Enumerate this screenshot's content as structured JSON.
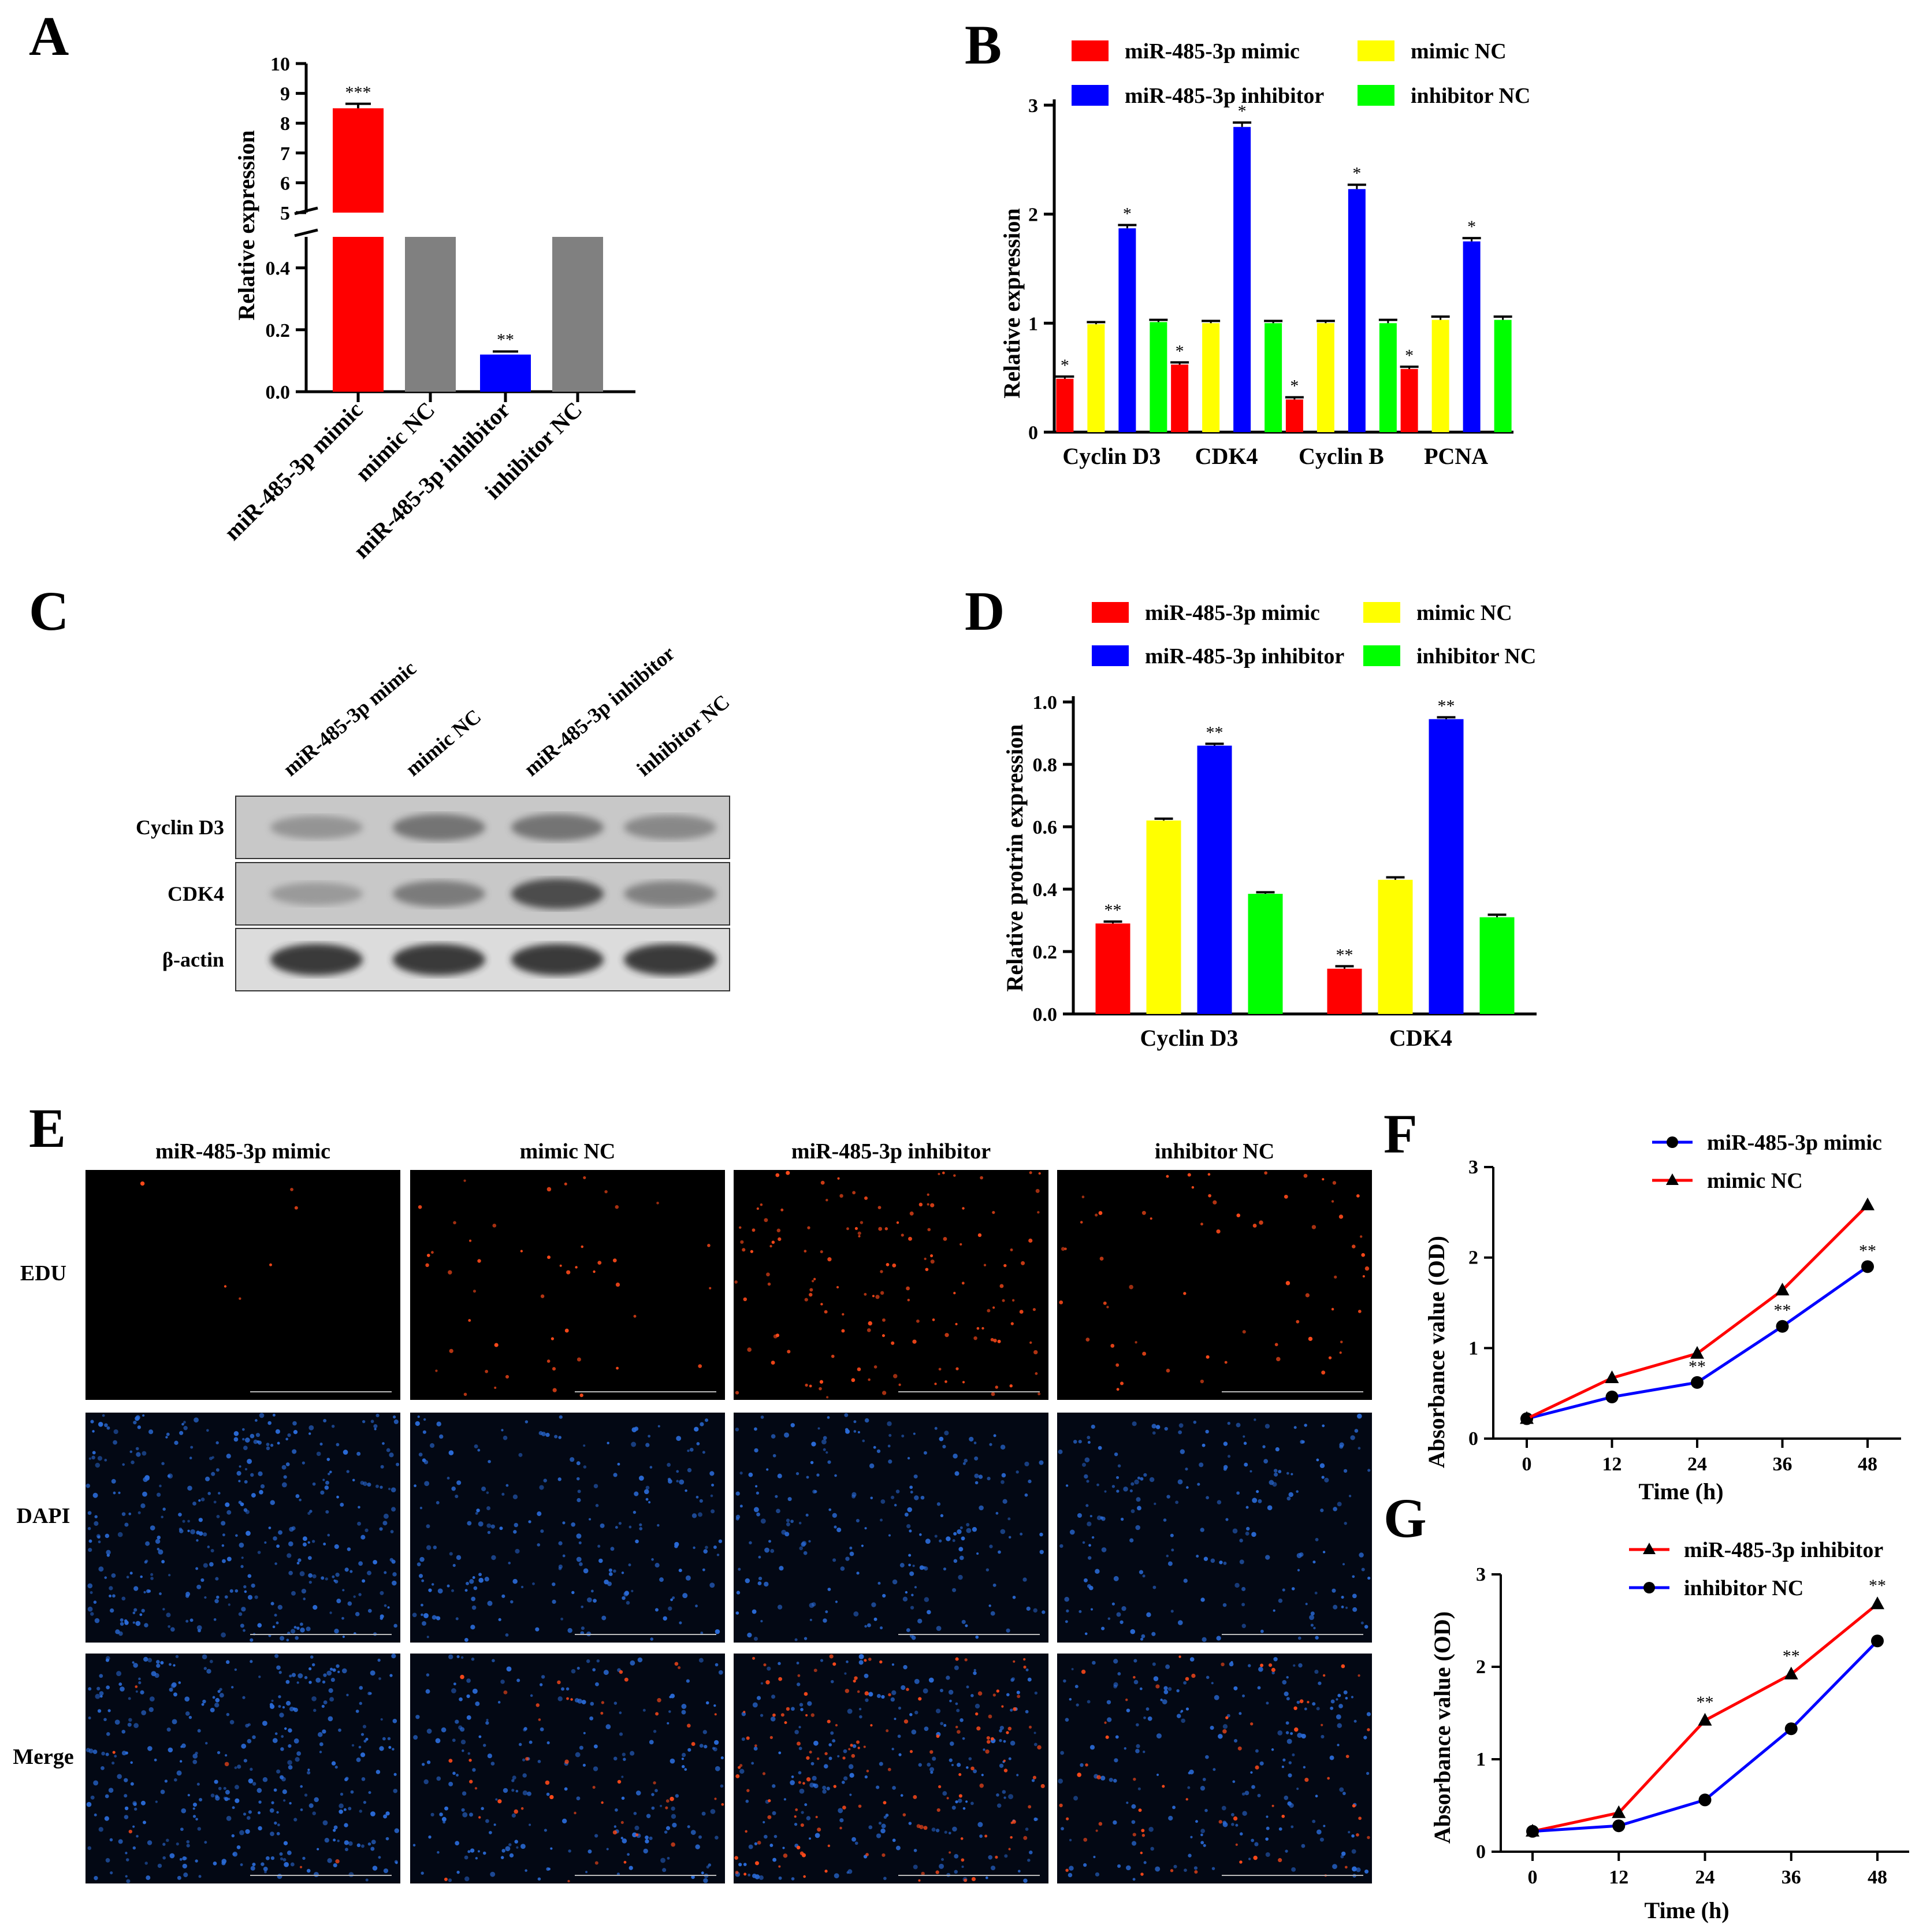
{
  "panels": {
    "A": {
      "label": "A"
    },
    "B": {
      "label": "B"
    },
    "C": {
      "label": "C"
    },
    "D": {
      "label": "D"
    },
    "E": {
      "label": "E"
    },
    "F": {
      "label": "F"
    },
    "G": {
      "label": "G"
    }
  },
  "colors": {
    "mimic": "#ff0000",
    "mimic_nc": "#ffff00",
    "inhibitor": "#0000ff",
    "inhibitor_nc": "#00ff00",
    "grey_bar": "#808080"
  },
  "chart_data": [
    {
      "id": "A",
      "type": "bar",
      "ylabel": "Relative expression",
      "categories": [
        "miR-485-3p mimic",
        "mimic NC",
        "miR-485-3p inhibitor",
        "inhibitor NC"
      ],
      "values": [
        8.5,
        1.0,
        0.12,
        1.0
      ],
      "errors": [
        0.15,
        0,
        0.01,
        0
      ],
      "significance": [
        "***",
        "",
        "**",
        ""
      ],
      "colors": [
        "#ff0000",
        "#808080",
        "#0000ff",
        "#808080"
      ],
      "axis_break": {
        "lower": [
          0,
          0.5
        ],
        "upper": [
          5,
          10
        ]
      },
      "lower_ticks": [
        "0.0",
        "0.2",
        "0.4"
      ],
      "upper_ticks": [
        "5",
        "6",
        "7",
        "8",
        "9",
        "10"
      ]
    },
    {
      "id": "B",
      "type": "bar",
      "ylabel": "Relative expression",
      "ylim": [
        0,
        3
      ],
      "yticks": [
        "0",
        "1",
        "2",
        "3"
      ],
      "categories": [
        "Cyclin D3",
        "CDK4",
        "Cyclin B",
        "PCNA"
      ],
      "series": [
        {
          "name": "miR-485-3p mimic",
          "color": "#ff0000",
          "values": [
            0.49,
            0.62,
            0.3,
            0.58
          ],
          "errors": [
            0.02,
            0.02,
            0.02,
            0.02
          ],
          "sig": [
            "*",
            "*",
            "*",
            "*"
          ]
        },
        {
          "name": "mimic NC",
          "color": "#ffff00",
          "values": [
            0.99,
            1.0,
            1.0,
            1.03
          ],
          "errors": [
            0.02,
            0.02,
            0.02,
            0.03
          ],
          "sig": [
            "",
            "",
            "",
            ""
          ]
        },
        {
          "name": "miR-485-3p inhibitor",
          "color": "#0000ff",
          "values": [
            1.87,
            2.8,
            2.23,
            1.75
          ],
          "errors": [
            0.03,
            0.04,
            0.04,
            0.03
          ],
          "sig": [
            "*",
            "*",
            "*",
            "*"
          ]
        },
        {
          "name": "inhibitor NC",
          "color": "#00ff00",
          "values": [
            1.01,
            1.0,
            1.0,
            1.03
          ],
          "errors": [
            0.02,
            0.02,
            0.03,
            0.03
          ],
          "sig": [
            "",
            "",
            "",
            ""
          ]
        }
      ]
    },
    {
      "id": "D",
      "type": "bar",
      "ylabel": "Relative protrin expression",
      "ylim": [
        0,
        1.0
      ],
      "yticks": [
        "0.0",
        "0.2",
        "0.4",
        "0.6",
        "0.8",
        "1.0"
      ],
      "categories": [
        "Cyclin D3",
        "CDK4"
      ],
      "series": [
        {
          "name": "miR-485-3p mimic",
          "color": "#ff0000",
          "values": [
            0.29,
            0.145
          ],
          "errors": [
            0.006,
            0.008
          ],
          "sig": [
            "**",
            "**"
          ]
        },
        {
          "name": "mimic NC",
          "color": "#ffff00",
          "values": [
            0.62,
            0.43
          ],
          "errors": [
            0.006,
            0.008
          ],
          "sig": [
            "",
            ""
          ]
        },
        {
          "name": "miR-485-3p inhibitor",
          "color": "#0000ff",
          "values": [
            0.86,
            0.945
          ],
          "errors": [
            0.006,
            0.006
          ],
          "sig": [
            "**",
            "**"
          ]
        },
        {
          "name": "inhibitor NC",
          "color": "#00ff00",
          "values": [
            0.385,
            0.31
          ],
          "errors": [
            0.005,
            0.008
          ],
          "sig": [
            "",
            ""
          ]
        }
      ]
    },
    {
      "id": "F",
      "type": "line",
      "xlabel": "Time (h)",
      "ylabel": "Absorbance value (OD)",
      "x": [
        0,
        12,
        24,
        36,
        48
      ],
      "ylim": [
        0,
        3
      ],
      "xticks": [
        "0",
        "12",
        "24",
        "36",
        "48"
      ],
      "yticks": [
        "0",
        "1",
        "2",
        "3"
      ],
      "series": [
        {
          "name": "miR-485-3p mimic",
          "color": "#0000ff",
          "marker": "circle",
          "values": [
            0.22,
            0.46,
            0.62,
            1.24,
            1.9
          ],
          "sig": [
            "",
            "",
            "**",
            "**",
            "**"
          ]
        },
        {
          "name": "mimic NC",
          "color": "#ff0000",
          "marker": "triangle",
          "values": [
            0.22,
            0.67,
            0.94,
            1.64,
            2.58
          ],
          "sig": [
            "",
            "",
            "",
            "",
            ""
          ]
        }
      ]
    },
    {
      "id": "G",
      "type": "line",
      "xlabel": "Time (h)",
      "ylabel": "Absorbance value (OD)",
      "x": [
        0,
        12,
        24,
        36,
        48
      ],
      "ylim": [
        0,
        3
      ],
      "xticks": [
        "0",
        "12",
        "24",
        "36",
        "48"
      ],
      "yticks": [
        "0",
        "1",
        "2",
        "3"
      ],
      "series": [
        {
          "name": "miR-485-3p inhibitor",
          "color": "#ff0000",
          "marker": "triangle",
          "values": [
            0.22,
            0.42,
            1.42,
            1.92,
            2.68
          ],
          "sig": [
            "",
            "",
            "**",
            "**",
            "**"
          ]
        },
        {
          "name": "inhibitor NC",
          "color": "#0000ff",
          "marker": "circle",
          "values": [
            0.22,
            0.28,
            0.56,
            1.33,
            2.28
          ],
          "sig": [
            "",
            "",
            "",
            "",
            ""
          ]
        }
      ]
    }
  ],
  "western_blot": {
    "lanes": [
      "miR-485-3p mimic",
      "mimic NC",
      "miR-485-3p inhibitor",
      "inhibitor NC"
    ],
    "rows": [
      {
        "label": "Cyclin D3",
        "intensity": [
          0.35,
          0.6,
          0.6,
          0.45
        ]
      },
      {
        "label": "CDK4",
        "intensity": [
          0.3,
          0.55,
          0.85,
          0.5
        ]
      },
      {
        "label": "β-actin",
        "intensity": [
          0.95,
          0.95,
          0.95,
          0.95
        ]
      }
    ]
  },
  "micrographs": {
    "columns": [
      "miR-485-3p mimic",
      "mimic NC",
      "miR-485-3p inhibitor",
      "inhibitor NC"
    ],
    "rows": [
      "EDU",
      "DAPI",
      "Merge"
    ],
    "edu_density": [
      0.02,
      0.15,
      0.45,
      0.2
    ],
    "dapi_density": [
      1.0,
      0.6,
      0.6,
      0.55
    ]
  }
}
